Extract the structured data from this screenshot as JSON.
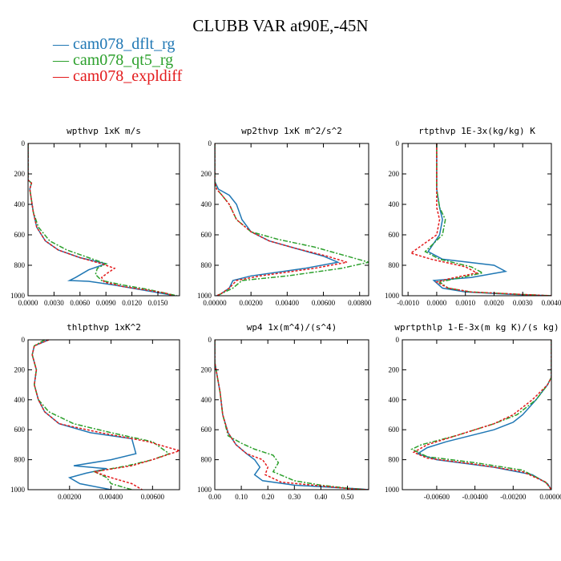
{
  "title": "CLUBB VAR at90E,-45N",
  "legend": [
    {
      "name": "cam078_dflt_rg",
      "color": "#1f77b4",
      "dash": ""
    },
    {
      "name": "cam078_qt5_rg",
      "color": "#2ca02c",
      "dash": "6,2,2,2"
    },
    {
      "name": "cam078_expldiff",
      "color": "#e31a1c",
      "dash": "3,2"
    }
  ],
  "chart_data": [
    {
      "type": "line",
      "title": "wpthvp  1xK m/s",
      "xlim": [
        0,
        0.0175
      ],
      "ylim": [
        1000,
        0
      ],
      "xticks": [
        0.0,
        0.003,
        0.006,
        0.009,
        0.012,
        0.015
      ],
      "xticklabels": [
        "0.0000",
        "0.0030",
        "0.0060",
        "0.0090",
        "0.0120",
        "0.0150"
      ],
      "yticks": [
        0,
        200,
        400,
        600,
        800,
        1000
      ],
      "yticklabels": [
        "0",
        "200",
        "400",
        "600",
        "800",
        "1000"
      ],
      "series": [
        {
          "name": "cam078_dflt_rg",
          "x": [
            0.0,
            0.0,
            0.0004,
            0.0002,
            0.0006,
            0.001,
            0.002,
            0.0035,
            0.006,
            0.009,
            0.007,
            0.0055,
            0.0048,
            0.007,
            0.01,
            0.013,
            0.0155,
            0.017
          ],
          "y": [
            0,
            240,
            260,
            300,
            450,
            550,
            640,
            700,
            750,
            790,
            830,
            880,
            900,
            905,
            930,
            960,
            985,
            1000
          ]
        },
        {
          "name": "cam078_qt5_rg",
          "x": [
            0.0,
            0.0,
            0.0004,
            0.0002,
            0.0006,
            0.0012,
            0.0025,
            0.0045,
            0.007,
            0.009,
            0.008,
            0.0078,
            0.0085,
            0.011,
            0.014,
            0.016,
            0.0172
          ],
          "y": [
            0,
            240,
            260,
            300,
            450,
            550,
            640,
            700,
            750,
            790,
            820,
            860,
            900,
            930,
            960,
            985,
            1000
          ]
        },
        {
          "name": "cam078_expldiff",
          "x": [
            0.0,
            0.0,
            0.0004,
            0.0002,
            0.0006,
            0.001,
            0.002,
            0.0035,
            0.006,
            0.0085,
            0.01,
            0.0092,
            0.0085,
            0.0088,
            0.011,
            0.014,
            0.016,
            0.0168
          ],
          "y": [
            0,
            240,
            260,
            300,
            450,
            550,
            640,
            700,
            750,
            790,
            820,
            850,
            880,
            910,
            940,
            965,
            985,
            1000
          ]
        }
      ]
    },
    {
      "type": "line",
      "title": "wp2thvp  1xK m^2/s^2",
      "xlim": [
        0,
        0.0085
      ],
      "ylim": [
        1000,
        0
      ],
      "xticks": [
        0.0,
        0.002,
        0.004,
        0.006,
        0.008
      ],
      "xticklabels": [
        "0.00000",
        "0.00200",
        "0.00400",
        "0.00600",
        "0.00800"
      ],
      "yticks": [
        0,
        200,
        400,
        600,
        800,
        1000
      ],
      "yticklabels": [
        "0",
        "200",
        "400",
        "600",
        "800",
        "1000"
      ],
      "series": [
        {
          "name": "cam078_dflt_rg",
          "x": [
            0.0,
            0.0,
            0.0002,
            0.0008,
            0.0012,
            0.0015,
            0.002,
            0.003,
            0.0045,
            0.006,
            0.0068,
            0.005,
            0.002,
            0.001,
            0.0008,
            0.0003,
            0.0001
          ],
          "y": [
            0,
            250,
            300,
            340,
            400,
            500,
            580,
            640,
            690,
            740,
            780,
            820,
            870,
            900,
            950,
            990,
            1000
          ]
        },
        {
          "name": "cam078_qt5_rg",
          "x": [
            0.0,
            0.0,
            0.0001,
            0.0004,
            0.0008,
            0.0012,
            0.002,
            0.0035,
            0.0055,
            0.007,
            0.0085,
            0.007,
            0.004,
            0.0015,
            0.001,
            0.0003,
            0.0001
          ],
          "y": [
            0,
            250,
            300,
            340,
            400,
            500,
            580,
            630,
            680,
            730,
            780,
            820,
            870,
            900,
            950,
            990,
            1000
          ]
        },
        {
          "name": "cam078_expldiff",
          "x": [
            0.0,
            0.0,
            0.0001,
            0.0004,
            0.0008,
            0.0012,
            0.002,
            0.003,
            0.0045,
            0.0062,
            0.0073,
            0.0055,
            0.0025,
            0.0012,
            0.0008,
            0.0003,
            0.0001
          ],
          "y": [
            0,
            250,
            300,
            340,
            400,
            500,
            580,
            640,
            690,
            740,
            780,
            820,
            870,
            900,
            950,
            990,
            1000
          ]
        }
      ]
    },
    {
      "type": "line",
      "title": "rtpthvp  1E-3x(kg/kg) K",
      "xlim": [
        -0.0012,
        0.004
      ],
      "ylim": [
        1000,
        0
      ],
      "xticks": [
        -0.001,
        0.0,
        0.001,
        0.002,
        0.003,
        0.004
      ],
      "xticklabels": [
        "-0.0010",
        "0.0000",
        "0.0010",
        "0.0020",
        "0.0030",
        "0.0040"
      ],
      "yticks": [
        0,
        200,
        400,
        600,
        800,
        1000
      ],
      "yticklabels": [
        "0",
        "200",
        "400",
        "600",
        "800",
        "1000"
      ],
      "series": [
        {
          "name": "cam078_dflt_rg",
          "x": [
            0.0,
            0.0,
            0.0001,
            0.0002,
            0.0001,
            -0.0003,
            0.0002,
            0.002,
            0.0024,
            0.0012,
            -0.0001,
            0.0002,
            0.001,
            0.0025,
            0.004
          ],
          "y": [
            0,
            300,
            420,
            500,
            600,
            710,
            760,
            800,
            840,
            880,
            900,
            950,
            975,
            990,
            1000
          ]
        },
        {
          "name": "cam078_qt5_rg",
          "x": [
            0.0,
            0.0,
            0.0001,
            0.0003,
            0.0002,
            -0.0004,
            0.0001,
            0.0012,
            0.0016,
            0.0006,
            0.0001,
            0.0004,
            0.0012,
            0.0028,
            0.004
          ],
          "y": [
            0,
            300,
            420,
            500,
            600,
            710,
            760,
            810,
            850,
            890,
            910,
            950,
            975,
            990,
            1000
          ]
        },
        {
          "name": "cam078_expldiff",
          "x": [
            0.0,
            0.0,
            0.0,
            0.0001,
            0.0,
            -0.0009,
            -0.0002,
            0.001,
            0.0014,
            0.0004,
            0.0,
            0.0004,
            0.0012,
            0.0028,
            0.004
          ],
          "y": [
            0,
            300,
            420,
            500,
            600,
            720,
            760,
            810,
            850,
            890,
            910,
            950,
            975,
            990,
            1000
          ]
        }
      ]
    },
    {
      "type": "line",
      "title": "thlpthvp  1xK^2",
      "xlim": [
        0,
        0.0073
      ],
      "ylim": [
        1000,
        0
      ],
      "xticks": [
        0.002,
        0.004,
        0.006
      ],
      "xticklabels": [
        "0.00200",
        "0.00400",
        "0.00600"
      ],
      "yticks": [
        0,
        200,
        400,
        600,
        800,
        1000
      ],
      "yticklabels": [
        "0",
        "200",
        "400",
        "600",
        "800",
        "1000"
      ],
      "series": [
        {
          "name": "cam078_dflt_rg",
          "x": [
            0.001,
            0.0003,
            0.0002,
            0.0004,
            0.0003,
            0.0005,
            0.0008,
            0.0015,
            0.003,
            0.005,
            0.0052,
            0.004,
            0.0022,
            0.0038,
            0.0028,
            0.002,
            0.0025,
            0.004
          ],
          "y": [
            0,
            40,
            100,
            200,
            300,
            400,
            480,
            560,
            620,
            660,
            760,
            800,
            840,
            860,
            890,
            920,
            960,
            1000
          ]
        },
        {
          "name": "cam078_qt5_rg",
          "x": [
            0.0008,
            0.0003,
            0.0002,
            0.0004,
            0.0003,
            0.0005,
            0.001,
            0.0022,
            0.004,
            0.006,
            0.0068,
            0.006,
            0.0048,
            0.0032,
            0.0038,
            0.004,
            0.005
          ],
          "y": [
            0,
            40,
            100,
            200,
            300,
            400,
            480,
            560,
            620,
            680,
            760,
            800,
            840,
            880,
            920,
            960,
            1000
          ]
        },
        {
          "name": "cam078_expldiff",
          "x": [
            0.001,
            0.0003,
            0.0002,
            0.0004,
            0.0003,
            0.0005,
            0.0008,
            0.0015,
            0.0035,
            0.0058,
            0.0073,
            0.006,
            0.005,
            0.0032,
            0.004,
            0.005,
            0.0055
          ],
          "y": [
            0,
            40,
            100,
            200,
            300,
            400,
            480,
            560,
            620,
            680,
            740,
            800,
            840,
            880,
            920,
            960,
            1000
          ]
        }
      ]
    },
    {
      "type": "line",
      "title": "wp4  1x(m^4)/(s^4)",
      "xlim": [
        0,
        0.58
      ],
      "ylim": [
        1000,
        0
      ],
      "xticks": [
        0.0,
        0.1,
        0.2,
        0.3,
        0.4,
        0.5
      ],
      "xticklabels": [
        "0.00",
        "0.10",
        "0.20",
        "0.30",
        "0.40",
        "0.50"
      ],
      "yticks": [
        0,
        200,
        400,
        600,
        800,
        1000
      ],
      "yticklabels": [
        "0",
        "200",
        "400",
        "600",
        "800",
        "1000"
      ],
      "series": [
        {
          "name": "cam078_dflt_rg",
          "x": [
            0.0,
            0.0,
            0.01,
            0.02,
            0.03,
            0.05,
            0.08,
            0.12,
            0.15,
            0.17,
            0.15,
            0.18,
            0.3,
            0.45,
            0.55,
            0.58
          ],
          "y": [
            0,
            150,
            250,
            350,
            500,
            620,
            700,
            760,
            800,
            850,
            900,
            940,
            970,
            985,
            995,
            1000
          ]
        },
        {
          "name": "cam078_qt5_rg",
          "x": [
            0.0,
            0.0,
            0.01,
            0.02,
            0.03,
            0.05,
            0.1,
            0.15,
            0.22,
            0.24,
            0.22,
            0.3,
            0.4,
            0.5,
            0.57
          ],
          "y": [
            0,
            150,
            250,
            350,
            500,
            640,
            690,
            730,
            770,
            820,
            880,
            940,
            970,
            990,
            1000
          ]
        },
        {
          "name": "cam078_expldiff",
          "x": [
            0.0,
            0.0,
            0.01,
            0.02,
            0.03,
            0.05,
            0.08,
            0.12,
            0.18,
            0.2,
            0.19,
            0.25,
            0.4,
            0.52,
            0.58
          ],
          "y": [
            0,
            150,
            250,
            350,
            500,
            620,
            700,
            760,
            800,
            850,
            900,
            950,
            975,
            995,
            1000
          ]
        }
      ]
    },
    {
      "type": "line",
      "title": "wprtpthlp  1-E-3x(m kg K)/(s kg)",
      "xlim": [
        -0.0078,
        0
      ],
      "ylim": [
        1000,
        0
      ],
      "xticks": [
        -0.006,
        -0.004,
        -0.002,
        0.0
      ],
      "xticklabels": [
        "-0.00600",
        "-0.00400",
        "-0.00200",
        "0.00000"
      ],
      "yticks": [
        0,
        200,
        400,
        600,
        800,
        1000
      ],
      "yticklabels": [
        "0",
        "200",
        "400",
        "600",
        "800",
        "1000"
      ],
      "series": [
        {
          "name": "cam078_dflt_rg",
          "x": [
            0.0,
            0.0,
            -0.0002,
            -0.0008,
            -0.0015,
            -0.002,
            -0.003,
            -0.0055,
            -0.0065,
            -0.007,
            -0.006,
            -0.003,
            -0.001,
            -0.0002,
            0.0
          ],
          "y": [
            0,
            250,
            300,
            400,
            500,
            550,
            600,
            680,
            720,
            760,
            800,
            850,
            900,
            960,
            1000
          ]
        },
        {
          "name": "cam078_qt5_rg",
          "x": [
            0.0,
            0.0,
            -0.0002,
            -0.0008,
            -0.0018,
            -0.003,
            -0.005,
            -0.0068,
            -0.0073,
            -0.0065,
            -0.004,
            -0.0015,
            -0.0003,
            0.0
          ],
          "y": [
            0,
            250,
            300,
            400,
            500,
            560,
            640,
            700,
            730,
            780,
            820,
            870,
            950,
            1000
          ]
        },
        {
          "name": "cam078_expldiff",
          "x": [
            0.0,
            0.0,
            -0.0002,
            -0.001,
            -0.002,
            -0.003,
            -0.005,
            -0.0065,
            -0.0072,
            -0.0065,
            -0.004,
            -0.0015,
            -0.0003,
            0.0
          ],
          "y": [
            0,
            250,
            300,
            400,
            500,
            560,
            640,
            700,
            750,
            790,
            830,
            880,
            950,
            1000
          ]
        }
      ]
    }
  ]
}
